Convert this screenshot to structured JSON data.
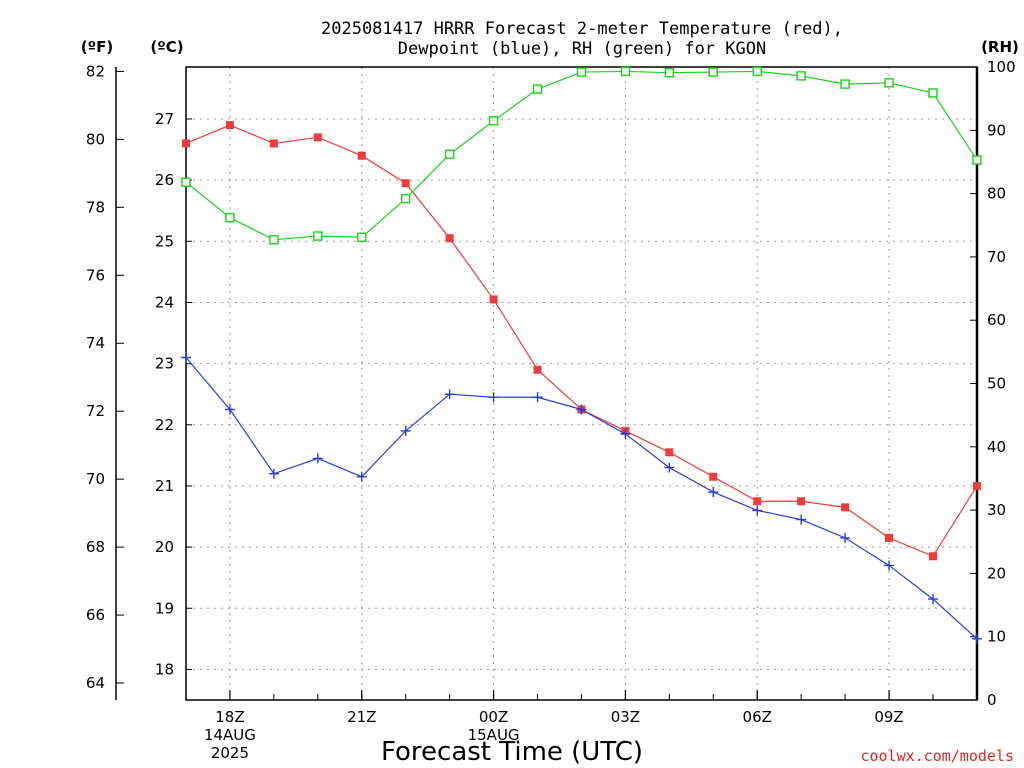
{
  "title_line1": "2025081417 HRRR Forecast 2-meter Temperature (red),",
  "title_line2": "Dewpoint (blue), RH (green) for KGON",
  "units": {
    "fahrenheit": "(ºF)",
    "celsius": "(ºC)",
    "rh": "(RH)"
  },
  "xlabel": "Forecast Time (UTC)",
  "credit": "coolwx.com/models",
  "colors": {
    "temperature": "#ee3b3b",
    "dewpoint": "#2a3de0",
    "rh": "#19d219",
    "grid": "#9a9a9a"
  },
  "chart_data": {
    "type": "line",
    "grid": true,
    "x_hours": [
      17,
      18,
      19,
      20,
      21,
      22,
      23,
      0,
      1,
      2,
      3,
      4,
      5,
      6,
      7,
      8,
      9,
      10,
      11
    ],
    "x_ticks": [
      {
        "hour": 18,
        "lines": [
          "18Z",
          "14AUG",
          "2025"
        ]
      },
      {
        "hour": 21,
        "lines": [
          "21Z"
        ]
      },
      {
        "hour": 0,
        "lines": [
          "00Z",
          "15AUG"
        ]
      },
      {
        "hour": 3,
        "lines": [
          "03Z"
        ]
      },
      {
        "hour": 6,
        "lines": [
          "06Z"
        ]
      },
      {
        "hour": 9,
        "lines": [
          "09Z"
        ]
      }
    ],
    "axes": {
      "celsius": {
        "ylim": [
          17.5,
          27.85
        ],
        "ticks": [
          "18",
          "19",
          "20",
          "21",
          "22",
          "23",
          "24",
          "25",
          "26",
          "27"
        ]
      },
      "fahrenheit": {
        "ylim": [
          63.5,
          82.13
        ],
        "ticks": [
          "64",
          "66",
          "68",
          "70",
          "72",
          "74",
          "76",
          "78",
          "80",
          "82"
        ]
      },
      "rh": {
        "ylim": [
          0,
          100
        ],
        "ticks": [
          "0",
          "10",
          "20",
          "30",
          "40",
          "50",
          "60",
          "70",
          "80",
          "90",
          "100"
        ]
      }
    },
    "series": [
      {
        "key": "temperature",
        "axis": "celsius",
        "marker": "filled-square",
        "values": [
          26.6,
          26.9,
          26.6,
          26.7,
          26.4,
          25.95,
          25.05,
          24.05,
          22.9,
          22.25,
          21.9,
          21.55,
          21.15,
          20.75,
          20.75,
          20.65,
          20.15,
          19.85,
          21.0
        ]
      },
      {
        "key": "dewpoint",
        "axis": "celsius",
        "marker": "plus",
        "values": [
          23.1,
          22.25,
          21.2,
          21.45,
          21.15,
          21.9,
          22.5,
          22.45,
          22.45,
          22.25,
          21.85,
          21.3,
          20.9,
          20.6,
          20.45,
          20.15,
          19.7,
          19.15,
          18.5
        ]
      },
      {
        "key": "rh",
        "axis": "rh",
        "marker": "open-square",
        "values": [
          81.8,
          76.2,
          72.7,
          73.3,
          73.1,
          79.2,
          86.2,
          91.5,
          96.5,
          99.2,
          99.3,
          99.1,
          99.2,
          99.3,
          98.6,
          97.3,
          97.5,
          95.9,
          85.3
        ]
      }
    ]
  }
}
